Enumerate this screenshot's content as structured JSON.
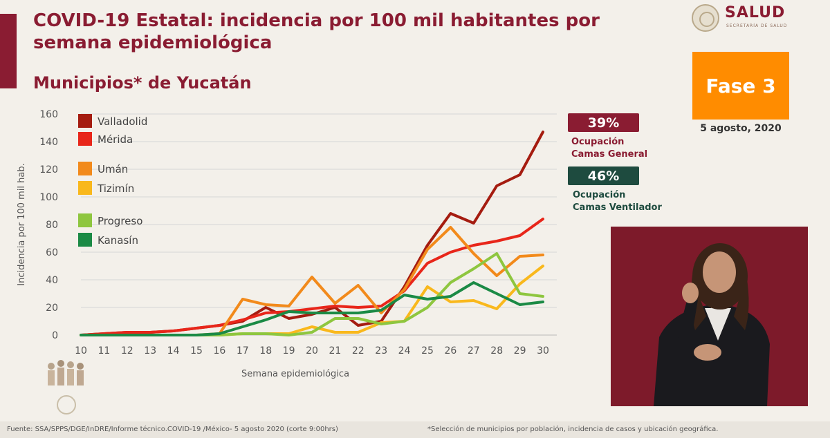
{
  "header": {
    "title": "COVID-19 Estatal: incidencia por 100 mil habitantes por semana epidemiológica",
    "subtitle": "Municipios* de Yucatán"
  },
  "logo": {
    "text": "SALUD",
    "subtext": "SECRETARÍA DE SALUD"
  },
  "phase": {
    "label": "Fase 3",
    "date": "5 agosto, 2020",
    "color": "#ff8c00"
  },
  "occupancy": {
    "general": {
      "value": "39%",
      "label_line1": "Ocupación",
      "label_line2": "Camas General",
      "color": "#8a1c32"
    },
    "ventilator": {
      "value": "46%",
      "label_line1": "Ocupación",
      "label_line2": "Camas Ventilador",
      "color": "#1e4b3f"
    }
  },
  "chart_data": {
    "type": "line",
    "xlabel": "Semana epidemiológica",
    "ylabel": "Incidencia por 100 mil hab.",
    "ylim": [
      0,
      160
    ],
    "yticks": [
      0,
      20,
      40,
      60,
      80,
      100,
      120,
      140,
      160
    ],
    "x": [
      10,
      11,
      12,
      13,
      14,
      15,
      16,
      17,
      18,
      19,
      20,
      21,
      22,
      23,
      24,
      25,
      26,
      27,
      28,
      29,
      30
    ],
    "grid": true,
    "legend_position": "top-left",
    "series": [
      {
        "name": "Valladolid",
        "color": "#a51c10",
        "values": [
          0,
          1,
          2,
          2,
          3,
          5,
          7,
          10,
          20,
          12,
          15,
          20,
          7,
          10,
          35,
          65,
          88,
          81,
          108,
          116,
          147
        ]
      },
      {
        "name": "Mérida",
        "color": "#e8261a",
        "values": [
          0,
          1,
          2,
          2,
          3,
          5,
          7,
          11,
          16,
          17,
          19,
          21,
          20,
          21,
          32,
          52,
          60,
          65,
          68,
          72,
          84
        ]
      },
      {
        "name": "Umán",
        "color": "#f28a1b",
        "values": [
          0,
          0,
          0,
          0,
          0,
          0,
          1,
          26,
          22,
          21,
          42,
          23,
          36,
          16,
          33,
          62,
          78,
          59,
          43,
          57,
          58
        ]
      },
      {
        "name": "Tizimín",
        "color": "#f9b81c",
        "values": [
          0,
          0,
          0,
          0,
          0,
          0,
          0,
          1,
          1,
          1,
          6,
          2,
          2,
          9,
          10,
          35,
          24,
          25,
          19,
          37,
          50
        ]
      },
      {
        "name": "Progreso",
        "color": "#8ec63f",
        "values": [
          0,
          0,
          0,
          0,
          0,
          0,
          0,
          1,
          1,
          0,
          2,
          12,
          12,
          8,
          10,
          20,
          38,
          48,
          59,
          30,
          28
        ]
      },
      {
        "name": "Kanasín",
        "color": "#1b8a45",
        "values": [
          0,
          0,
          0,
          0,
          0,
          0,
          1,
          6,
          11,
          17,
          16,
          16,
          16,
          18,
          29,
          26,
          28,
          38,
          30,
          22,
          24
        ]
      }
    ]
  },
  "footer": {
    "source": "Fuente: SSA/SPPS/DGE/InDRE/Informe técnico.COVID-19 /México- 5 agosto 2020 (corte 9:00hrs)",
    "footnote": "*Selección de municipios por población, incidencia de casos y ubicación geográfica."
  }
}
